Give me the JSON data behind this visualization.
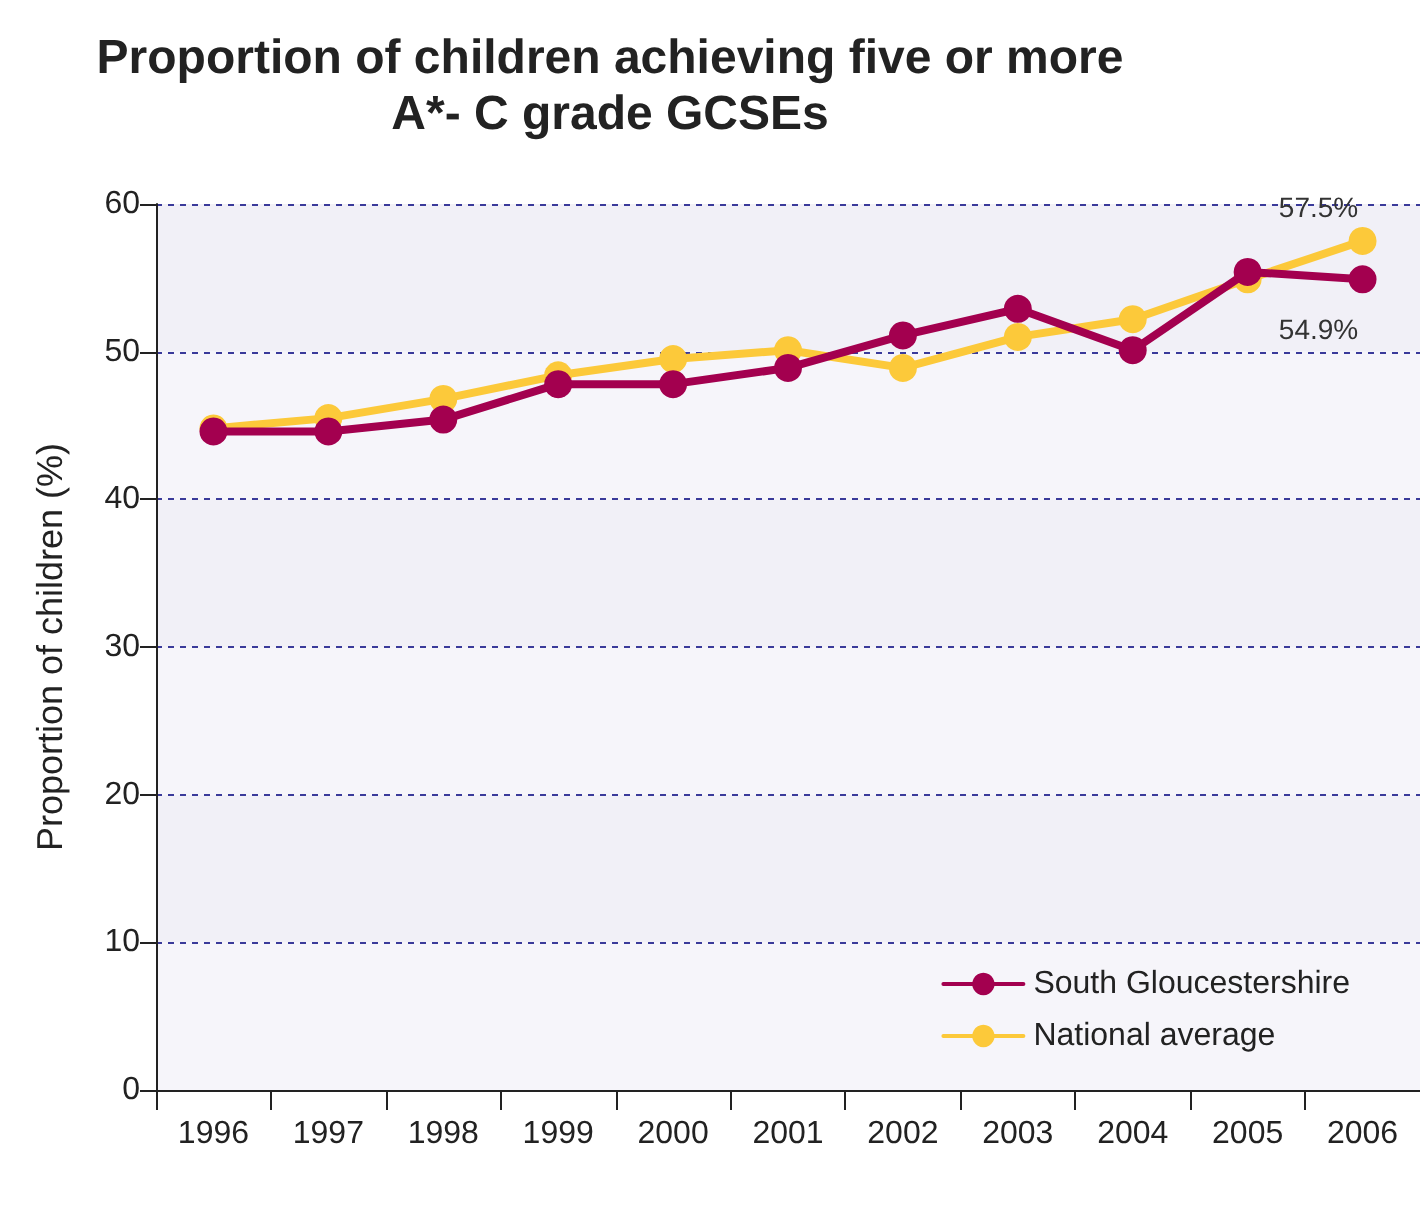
{
  "chart_data": {
    "type": "line",
    "title": "Proportion of children achieving five or more\nA*- C grade GCSEs",
    "ylabel": "Proportion of children (%)",
    "categories": [
      "1996",
      "1997",
      "1998",
      "1999",
      "2000",
      "2001",
      "2002",
      "2003",
      "2004",
      "2005",
      "2006"
    ],
    "series": [
      {
        "name": "South Gloucestershire",
        "color": "#a3004f",
        "values": [
          44.6,
          44.6,
          45.4,
          47.8,
          47.8,
          48.9,
          51.1,
          52.9,
          50.1,
          55.4,
          54.9
        ],
        "value_labels": [
          null,
          null,
          null,
          null,
          null,
          null,
          null,
          null,
          null,
          null,
          "54.9%"
        ]
      },
      {
        "name": "National average",
        "color": "#fcc93a",
        "values": [
          44.8,
          45.5,
          46.8,
          48.4,
          49.5,
          50.1,
          48.9,
          51.0,
          52.2,
          54.9,
          57.5
        ],
        "value_labels": [
          null,
          null,
          null,
          null,
          null,
          null,
          null,
          null,
          null,
          null,
          "57.5%"
        ]
      }
    ],
    "ylim": [
      0,
      60
    ],
    "yticks": [
      0,
      10,
      20,
      30,
      40,
      50,
      60
    ],
    "grid": "y",
    "legend": "bottom right",
    "marker": "circle",
    "line_style": "solid"
  }
}
